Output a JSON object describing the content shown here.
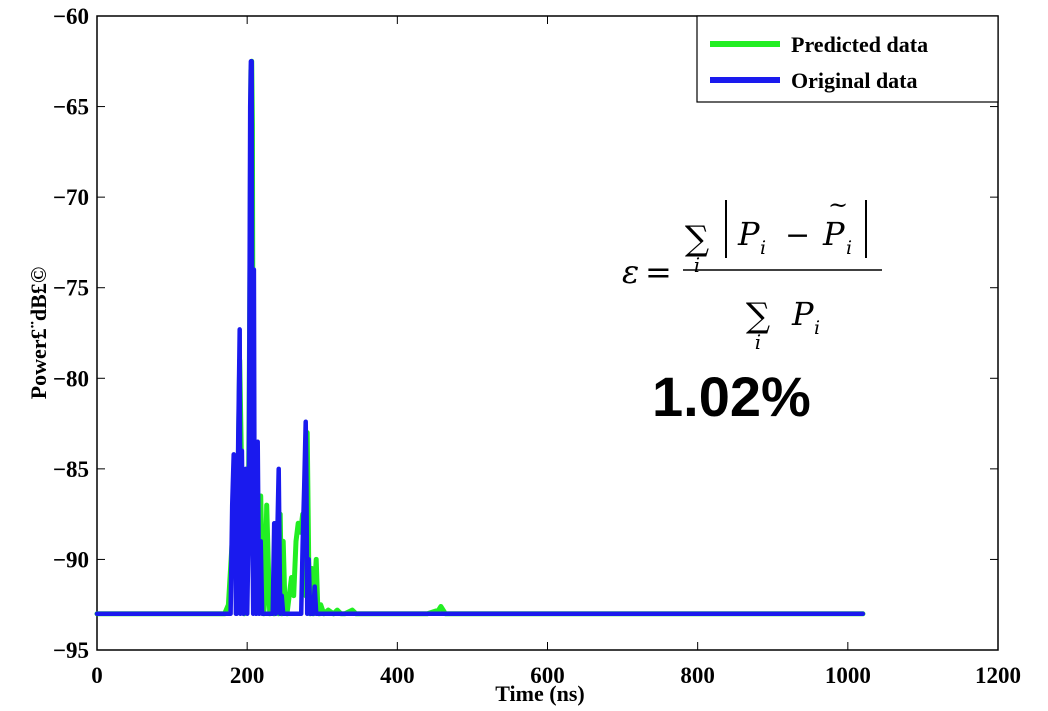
{
  "chart_data": {
    "type": "line",
    "title": "",
    "xlabel": "Time (ns)",
    "ylabel": "Power£¨dB£©",
    "xlim": [
      0,
      1200
    ],
    "ylim": [
      -95,
      -60
    ],
    "xticks": [
      "0",
      "200",
      "400",
      "600",
      "800",
      "1000",
      "1200"
    ],
    "yticks": [
      "−60",
      "−65",
      "−70",
      "−75",
      "−80",
      "−85",
      "−90",
      "−95"
    ],
    "grid": false,
    "legend_position": "top-right",
    "series": [
      {
        "name": "Predicted data",
        "color": "#22ee22",
        "x": [
          0,
          170,
          175,
          180,
          183,
          186,
          190,
          193,
          196,
          199,
          202,
          204,
          205,
          206,
          207,
          208,
          210,
          212,
          214,
          216,
          218,
          220,
          222,
          224,
          226,
          228,
          230,
          233,
          236,
          239,
          242,
          244,
          246,
          248,
          250,
          253,
          256,
          259,
          262,
          265,
          268,
          271,
          274,
          276,
          278,
          280,
          282,
          284,
          286,
          288,
          290,
          292,
          294,
          296,
          298,
          302,
          308,
          315,
          320,
          325,
          330,
          335,
          340,
          345,
          360,
          380,
          400,
          420,
          440,
          455,
          458,
          461,
          464,
          470,
          500,
          600,
          700,
          800,
          900,
          1000,
          1020
        ],
        "y": [
          -93,
          -93,
          -92.5,
          -89,
          -84.5,
          -91,
          -79,
          -86,
          -93,
          -90,
          -85,
          -72,
          -63,
          -62.5,
          -66,
          -85.5,
          -90,
          -86.5,
          -92,
          -87,
          -86.5,
          -90,
          -93,
          -92,
          -87,
          -90,
          -93,
          -91.5,
          -93,
          -88,
          -93,
          -87.5,
          -93,
          -89,
          -92,
          -93,
          -92,
          -91,
          -92,
          -89,
          -88,
          -88.5,
          -87.5,
          -88.5,
          -92,
          -83,
          -90,
          -93,
          -90.5,
          -93,
          -91.5,
          -90,
          -92.5,
          -93,
          -92.5,
          -93,
          -92.8,
          -93,
          -92.8,
          -93,
          -93,
          -92.9,
          -92.8,
          -93,
          -93,
          -93,
          -93,
          -93,
          -93,
          -92.8,
          -92.6,
          -92.8,
          -93,
          -93,
          -93,
          -93,
          -93,
          -93,
          -93,
          -93,
          -93
        ]
      },
      {
        "name": "Original data",
        "color": "#1a1aee",
        "x": [
          0,
          178,
          180,
          182,
          184,
          185,
          186,
          188,
          190,
          191,
          193,
          195,
          197,
          198,
          200,
          202,
          204,
          205,
          206,
          207,
          208,
          209,
          210,
          212,
          214,
          216,
          218,
          220,
          222,
          225,
          230,
          234,
          236,
          238,
          240,
          242,
          244,
          246,
          248,
          252,
          255,
          260,
          265,
          268,
          270,
          272,
          274,
          276,
          278,
          279,
          280,
          282,
          284,
          286,
          288,
          290,
          292,
          294,
          300,
          350,
          400,
          600,
          800,
          1000,
          1020
        ],
        "y": [
          -93,
          -93,
          -87,
          -84.2,
          -88,
          -93,
          -93,
          -83.5,
          -77.3,
          -93,
          -84,
          -93,
          -92,
          -85,
          -93,
          -88,
          -65,
          -62.5,
          -62.5,
          -88,
          -93,
          -74,
          -91,
          -93,
          -83.5,
          -93,
          -89,
          -93,
          -93,
          -93,
          -93,
          -93,
          -88,
          -93,
          -89,
          -85,
          -93,
          -92,
          -93,
          -93,
          -93,
          -93,
          -93,
          -93,
          -93,
          -93,
          -89,
          -86,
          -82.4,
          -86,
          -93,
          -90,
          -93,
          -93,
          -93,
          -91.5,
          -93,
          -93,
          -93,
          -93,
          -93,
          -93,
          -93,
          -93,
          -93
        ]
      }
    ]
  },
  "formula": {
    "epsilon": "ε",
    "equals": "=",
    "sum_symbol": "∑",
    "index": "i",
    "term_p": "P",
    "term_p_tilde": "P",
    "tilde": "~",
    "minus": "−",
    "bar": "|"
  },
  "error_value": "1.02%"
}
